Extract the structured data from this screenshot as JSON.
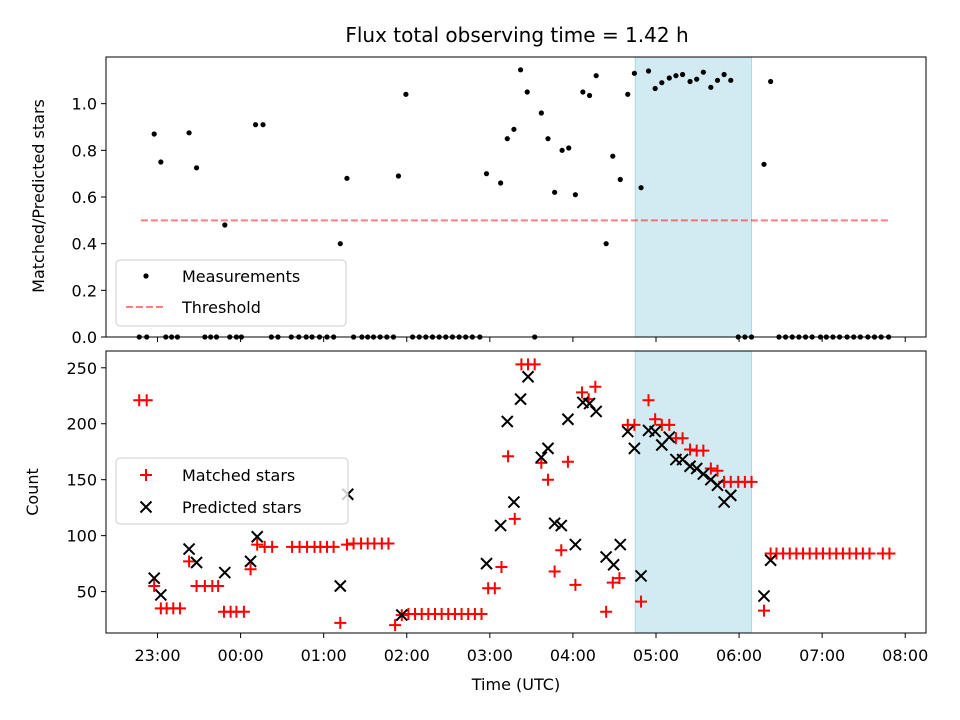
{
  "figure": {
    "title": "Flux total observing time = 1.42 h",
    "xlabel": "Time (UTC)",
    "x_ticks": [
      "23:00",
      "00:00",
      "01:00",
      "02:00",
      "03:00",
      "04:00",
      "05:00",
      "06:00",
      "07:00",
      "08:00"
    ]
  },
  "chart_data": [
    {
      "type": "scatter",
      "ylabel": "Matched/Predicted stars",
      "xlim": [
        -0.62,
        9.25
      ],
      "ylim": [
        0,
        1.2
      ],
      "y_ticks": [
        "0.0",
        "0.2",
        "0.4",
        "0.6",
        "0.8",
        "1.0"
      ],
      "x_units": "hours after 23:00 UTC",
      "highlight_span": {
        "x_start": 5.75,
        "x_end": 7.15,
        "color": "#add8e6"
      },
      "legend_position": "lower-left",
      "threshold": {
        "name": "Threshold",
        "value": 0.5,
        "x_range": [
          -0.2,
          8.8
        ],
        "color": "#ff0000",
        "style": "dashed"
      },
      "series": [
        {
          "name": "Measurements",
          "color": "#000000",
          "marker": "dot",
          "points": [
            [
              -0.22,
              0
            ],
            [
              -0.13,
              0
            ],
            [
              -0.04,
              0.87
            ],
            [
              0.04,
              0.75
            ],
            [
              0.1,
              0
            ],
            [
              0.17,
              0
            ],
            [
              0.24,
              0
            ],
            [
              0.38,
              0.875
            ],
            [
              0.47,
              0.725
            ],
            [
              0.57,
              0
            ],
            [
              0.64,
              0
            ],
            [
              0.71,
              0
            ],
            [
              0.81,
              0.48
            ],
            [
              0.87,
              0
            ],
            [
              0.95,
              0
            ],
            [
              1.01,
              0
            ],
            [
              1.18,
              0.91
            ],
            [
              1.27,
              0.91
            ],
            [
              1.37,
              0
            ],
            [
              1.45,
              0
            ],
            [
              1.61,
              0
            ],
            [
              1.7,
              0
            ],
            [
              1.79,
              0
            ],
            [
              1.86,
              0
            ],
            [
              1.95,
              0
            ],
            [
              2.04,
              0
            ],
            [
              2.12,
              0
            ],
            [
              2.2,
              0.4
            ],
            [
              2.28,
              0.68
            ],
            [
              2.36,
              0
            ],
            [
              2.46,
              0
            ],
            [
              2.53,
              0
            ],
            [
              2.6,
              0
            ],
            [
              2.68,
              0
            ],
            [
              2.76,
              0
            ],
            [
              2.84,
              0
            ],
            [
              2.9,
              0.69
            ],
            [
              2.99,
              1.04
            ],
            [
              3.07,
              0
            ],
            [
              3.15,
              0
            ],
            [
              3.23,
              0
            ],
            [
              3.31,
              0
            ],
            [
              3.39,
              0
            ],
            [
              3.47,
              0
            ],
            [
              3.55,
              0
            ],
            [
              3.63,
              0
            ],
            [
              3.71,
              0
            ],
            [
              3.79,
              0
            ],
            [
              3.88,
              0
            ],
            [
              3.96,
              0.7
            ],
            [
              4.13,
              0.66
            ],
            [
              4.21,
              0.85
            ],
            [
              4.29,
              0.89
            ],
            [
              4.37,
              1.145
            ],
            [
              4.45,
              1.05
            ],
            [
              4.54,
              0
            ],
            [
              4.62,
              0.96
            ],
            [
              4.7,
              0.85
            ],
            [
              4.78,
              0.62
            ],
            [
              4.87,
              0.8
            ],
            [
              4.95,
              0.81
            ],
            [
              5.03,
              0.61
            ],
            [
              5.12,
              1.05
            ],
            [
              5.2,
              1.035
            ],
            [
              5.28,
              1.12
            ],
            [
              5.4,
              0.4
            ],
            [
              5.48,
              0.775
            ],
            [
              5.57,
              0.675
            ],
            [
              5.66,
              1.04
            ],
            [
              5.74,
              1.13
            ],
            [
              5.82,
              0.64
            ],
            [
              5.91,
              1.14
            ],
            [
              5.99,
              1.065
            ],
            [
              6.07,
              1.09
            ],
            [
              6.16,
              1.11
            ],
            [
              6.24,
              1.12
            ],
            [
              6.32,
              1.125
            ],
            [
              6.41,
              1.095
            ],
            [
              6.49,
              1.105
            ],
            [
              6.57,
              1.135
            ],
            [
              6.66,
              1.07
            ],
            [
              6.74,
              1.1
            ],
            [
              6.82,
              1.125
            ],
            [
              6.9,
              1.1
            ],
            [
              6.99,
              0
            ],
            [
              7.07,
              0
            ],
            [
              7.15,
              0
            ],
            [
              7.3,
              0.74
            ],
            [
              7.38,
              1.095
            ],
            [
              7.48,
              0
            ],
            [
              7.56,
              0
            ],
            [
              7.64,
              0
            ],
            [
              7.72,
              0
            ],
            [
              7.8,
              0
            ],
            [
              7.88,
              0
            ],
            [
              7.98,
              0
            ],
            [
              8.05,
              0
            ],
            [
              8.13,
              0
            ],
            [
              8.21,
              0
            ],
            [
              8.3,
              0
            ],
            [
              8.38,
              0
            ],
            [
              8.46,
              0
            ],
            [
              8.55,
              0
            ],
            [
              8.63,
              0
            ],
            [
              8.71,
              0
            ],
            [
              8.8,
              0
            ]
          ]
        }
      ]
    },
    {
      "type": "scatter",
      "ylabel": "Count",
      "xlim": [
        -0.62,
        9.25
      ],
      "ylim": [
        13,
        265
      ],
      "y_ticks": [
        "50",
        "100",
        "150",
        "200",
        "250"
      ],
      "x_units": "hours after 23:00 UTC",
      "highlight_span": {
        "x_start": 5.75,
        "x_end": 7.15,
        "color": "#add8e6"
      },
      "legend_position": "center-left",
      "series": [
        {
          "name": "Matched stars",
          "color": "#ff0000",
          "marker": "plus",
          "points": [
            [
              -0.22,
              221
            ],
            [
              -0.13,
              221
            ],
            [
              -0.04,
              55
            ],
            [
              0.04,
              35
            ],
            [
              0.11,
              35
            ],
            [
              0.19,
              35
            ],
            [
              0.27,
              35
            ],
            [
              0.38,
              77
            ],
            [
              0.47,
              55
            ],
            [
              0.57,
              55
            ],
            [
              0.66,
              55
            ],
            [
              0.73,
              55
            ],
            [
              0.8,
              32
            ],
            [
              0.88,
              32
            ],
            [
              0.95,
              32
            ],
            [
              1.04,
              32
            ],
            [
              1.12,
              70
            ],
            [
              1.2,
              92
            ],
            [
              1.29,
              90
            ],
            [
              1.38,
              90
            ],
            [
              1.62,
              90
            ],
            [
              1.71,
              90
            ],
            [
              1.8,
              90
            ],
            [
              1.89,
              90
            ],
            [
              1.96,
              90
            ],
            [
              2.04,
              90
            ],
            [
              2.12,
              90
            ],
            [
              2.2,
              22
            ],
            [
              2.28,
              92
            ],
            [
              2.36,
              93
            ],
            [
              2.45,
              93
            ],
            [
              2.53,
              93
            ],
            [
              2.61,
              93
            ],
            [
              2.7,
              93
            ],
            [
              2.78,
              93
            ],
            [
              2.86,
              20
            ],
            [
              2.94,
              29
            ],
            [
              3.02,
              30
            ],
            [
              3.1,
              30
            ],
            [
              3.18,
              30
            ],
            [
              3.26,
              30
            ],
            [
              3.34,
              30
            ],
            [
              3.42,
              30
            ],
            [
              3.5,
              30
            ],
            [
              3.58,
              30
            ],
            [
              3.66,
              30
            ],
            [
              3.74,
              30
            ],
            [
              3.82,
              30
            ],
            [
              3.9,
              30
            ],
            [
              3.98,
              53
            ],
            [
              4.06,
              53
            ],
            [
              4.14,
              72
            ],
            [
              4.22,
              171
            ],
            [
              4.3,
              115
            ],
            [
              4.38,
              253
            ],
            [
              4.46,
              253
            ],
            [
              4.54,
              253
            ],
            [
              4.62,
              165
            ],
            [
              4.7,
              150
            ],
            [
              4.78,
              68
            ],
            [
              4.86,
              87
            ],
            [
              4.94,
              166
            ],
            [
              5.03,
              56
            ],
            [
              5.11,
              228
            ],
            [
              5.19,
              222
            ],
            [
              5.27,
              233
            ],
            [
              5.4,
              32
            ],
            [
              5.48,
              58
            ],
            [
              5.56,
              62
            ],
            [
              5.66,
              199
            ],
            [
              5.74,
              199
            ],
            [
              5.82,
              41
            ],
            [
              5.91,
              221
            ],
            [
              5.99,
              204
            ],
            [
              6.07,
              199
            ],
            [
              6.16,
              199
            ],
            [
              6.24,
              187
            ],
            [
              6.32,
              187
            ],
            [
              6.41,
              177
            ],
            [
              6.49,
              176
            ],
            [
              6.57,
              176
            ],
            [
              6.66,
              160
            ],
            [
              6.74,
              158
            ],
            [
              6.82,
              148
            ],
            [
              6.9,
              148
            ],
            [
              6.99,
              148
            ],
            [
              7.07,
              148
            ],
            [
              7.15,
              148
            ],
            [
              7.3,
              33
            ],
            [
              7.38,
              84
            ],
            [
              7.45,
              84
            ],
            [
              7.53,
              84
            ],
            [
              7.61,
              84
            ],
            [
              7.69,
              84
            ],
            [
              7.77,
              84
            ],
            [
              7.85,
              84
            ],
            [
              7.93,
              84
            ],
            [
              8.01,
              84
            ],
            [
              8.09,
              84
            ],
            [
              8.17,
              84
            ],
            [
              8.25,
              84
            ],
            [
              8.33,
              84
            ],
            [
              8.41,
              84
            ],
            [
              8.49,
              84
            ],
            [
              8.57,
              84
            ],
            [
              8.73,
              84
            ],
            [
              8.81,
              84
            ]
          ]
        },
        {
          "name": "Predicted stars",
          "color": "#000000",
          "marker": "x",
          "points": [
            [
              -0.04,
              62
            ],
            [
              0.04,
              47
            ],
            [
              0.38,
              88
            ],
            [
              0.47,
              76
            ],
            [
              0.81,
              67
            ],
            [
              1.12,
              77
            ],
            [
              1.2,
              99
            ],
            [
              2.2,
              55
            ],
            [
              2.29,
              137
            ],
            [
              2.94,
              29
            ],
            [
              3.96,
              75
            ],
            [
              4.13,
              109
            ],
            [
              4.21,
              202
            ],
            [
              4.29,
              130
            ],
            [
              4.37,
              222
            ],
            [
              4.46,
              242
            ],
            [
              4.62,
              170
            ],
            [
              4.7,
              178
            ],
            [
              4.78,
              111
            ],
            [
              4.86,
              109
            ],
            [
              4.94,
              204
            ],
            [
              5.03,
              92
            ],
            [
              5.12,
              219
            ],
            [
              5.2,
              218
            ],
            [
              5.28,
              211
            ],
            [
              5.4,
              81
            ],
            [
              5.49,
              74
            ],
            [
              5.57,
              92
            ],
            [
              5.66,
              193
            ],
            [
              5.74,
              178
            ],
            [
              5.82,
              64
            ],
            [
              5.91,
              194
            ],
            [
              5.99,
              193
            ],
            [
              6.07,
              181
            ],
            [
              6.16,
              188
            ],
            [
              6.24,
              168
            ],
            [
              6.32,
              168
            ],
            [
              6.41,
              162
            ],
            [
              6.49,
              160
            ],
            [
              6.57,
              155
            ],
            [
              6.66,
              150
            ],
            [
              6.74,
              145
            ],
            [
              6.82,
              130
            ],
            [
              6.9,
              136
            ],
            [
              7.3,
              46
            ],
            [
              7.38,
              78
            ]
          ]
        }
      ]
    }
  ]
}
